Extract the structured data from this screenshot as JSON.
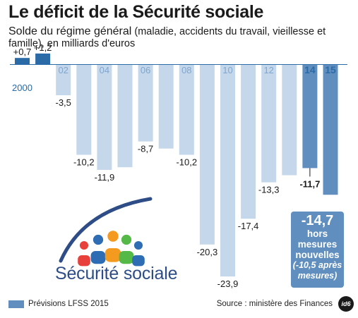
{
  "title": "Le déficit de la Sécurité sociale",
  "subtitle_main": "Solde du régime général",
  "subtitle_rest": " (maladie, accidents du travail, vieillesse et famille), en milliards d'euros",
  "colors": {
    "actual_bar": "#c5d7ea",
    "forecast_bar": "#5f8ebf",
    "early_bar": "#2a6aa6",
    "axis_line": "#2a6aa6",
    "label_dark": "#1a1a1a"
  },
  "chart_data": {
    "type": "bar",
    "x": [
      2000,
      2001,
      2002,
      2003,
      2004,
      2005,
      2006,
      2007,
      2008,
      2009,
      2010,
      2011,
      2012,
      2013,
      2014,
      2015
    ],
    "values": [
      0.7,
      1.2,
      -3.5,
      -10.2,
      -11.9,
      -11.6,
      -8.7,
      -9.5,
      -10.2,
      -20.3,
      -23.9,
      -17.4,
      -13.3,
      -12.5,
      -11.7,
      -14.7
    ],
    "value_labels": [
      "+0,7",
      "+1,2",
      "-3,5",
      "-10,2",
      "-11,9",
      "",
      "-8,7",
      "",
      "-10,2",
      "-20,3",
      "-23,9",
      "-17,4",
      "-13,3",
      "",
      "-11,7",
      "-14,7"
    ],
    "tick_labels": [
      "2000",
      "",
      "02",
      "",
      "04",
      "",
      "06",
      "",
      "08",
      "",
      "10",
      "",
      "12",
      "",
      "14",
      "15"
    ],
    "forecast": [
      false,
      false,
      false,
      false,
      false,
      false,
      false,
      false,
      false,
      false,
      false,
      false,
      false,
      false,
      true,
      true
    ],
    "ylim": [
      -25,
      2
    ]
  },
  "forecast_note": {
    "value": "-14,7",
    "line1": "hors",
    "line2": "mesures",
    "line3": "nouvelles",
    "line4": "(-10,5 après",
    "line5": "mesures)"
  },
  "legend": {
    "label": "Prévisions LFSS 2015"
  },
  "source": "Source : ministère des Finances",
  "source_logo": "id6",
  "logo": {
    "text": "Sécurité sociale",
    "figure_colors": [
      "#e8413c",
      "#2e6db4",
      "#f39a1f",
      "#54b947",
      "#2e6db4",
      "#7e4b9e"
    ]
  }
}
